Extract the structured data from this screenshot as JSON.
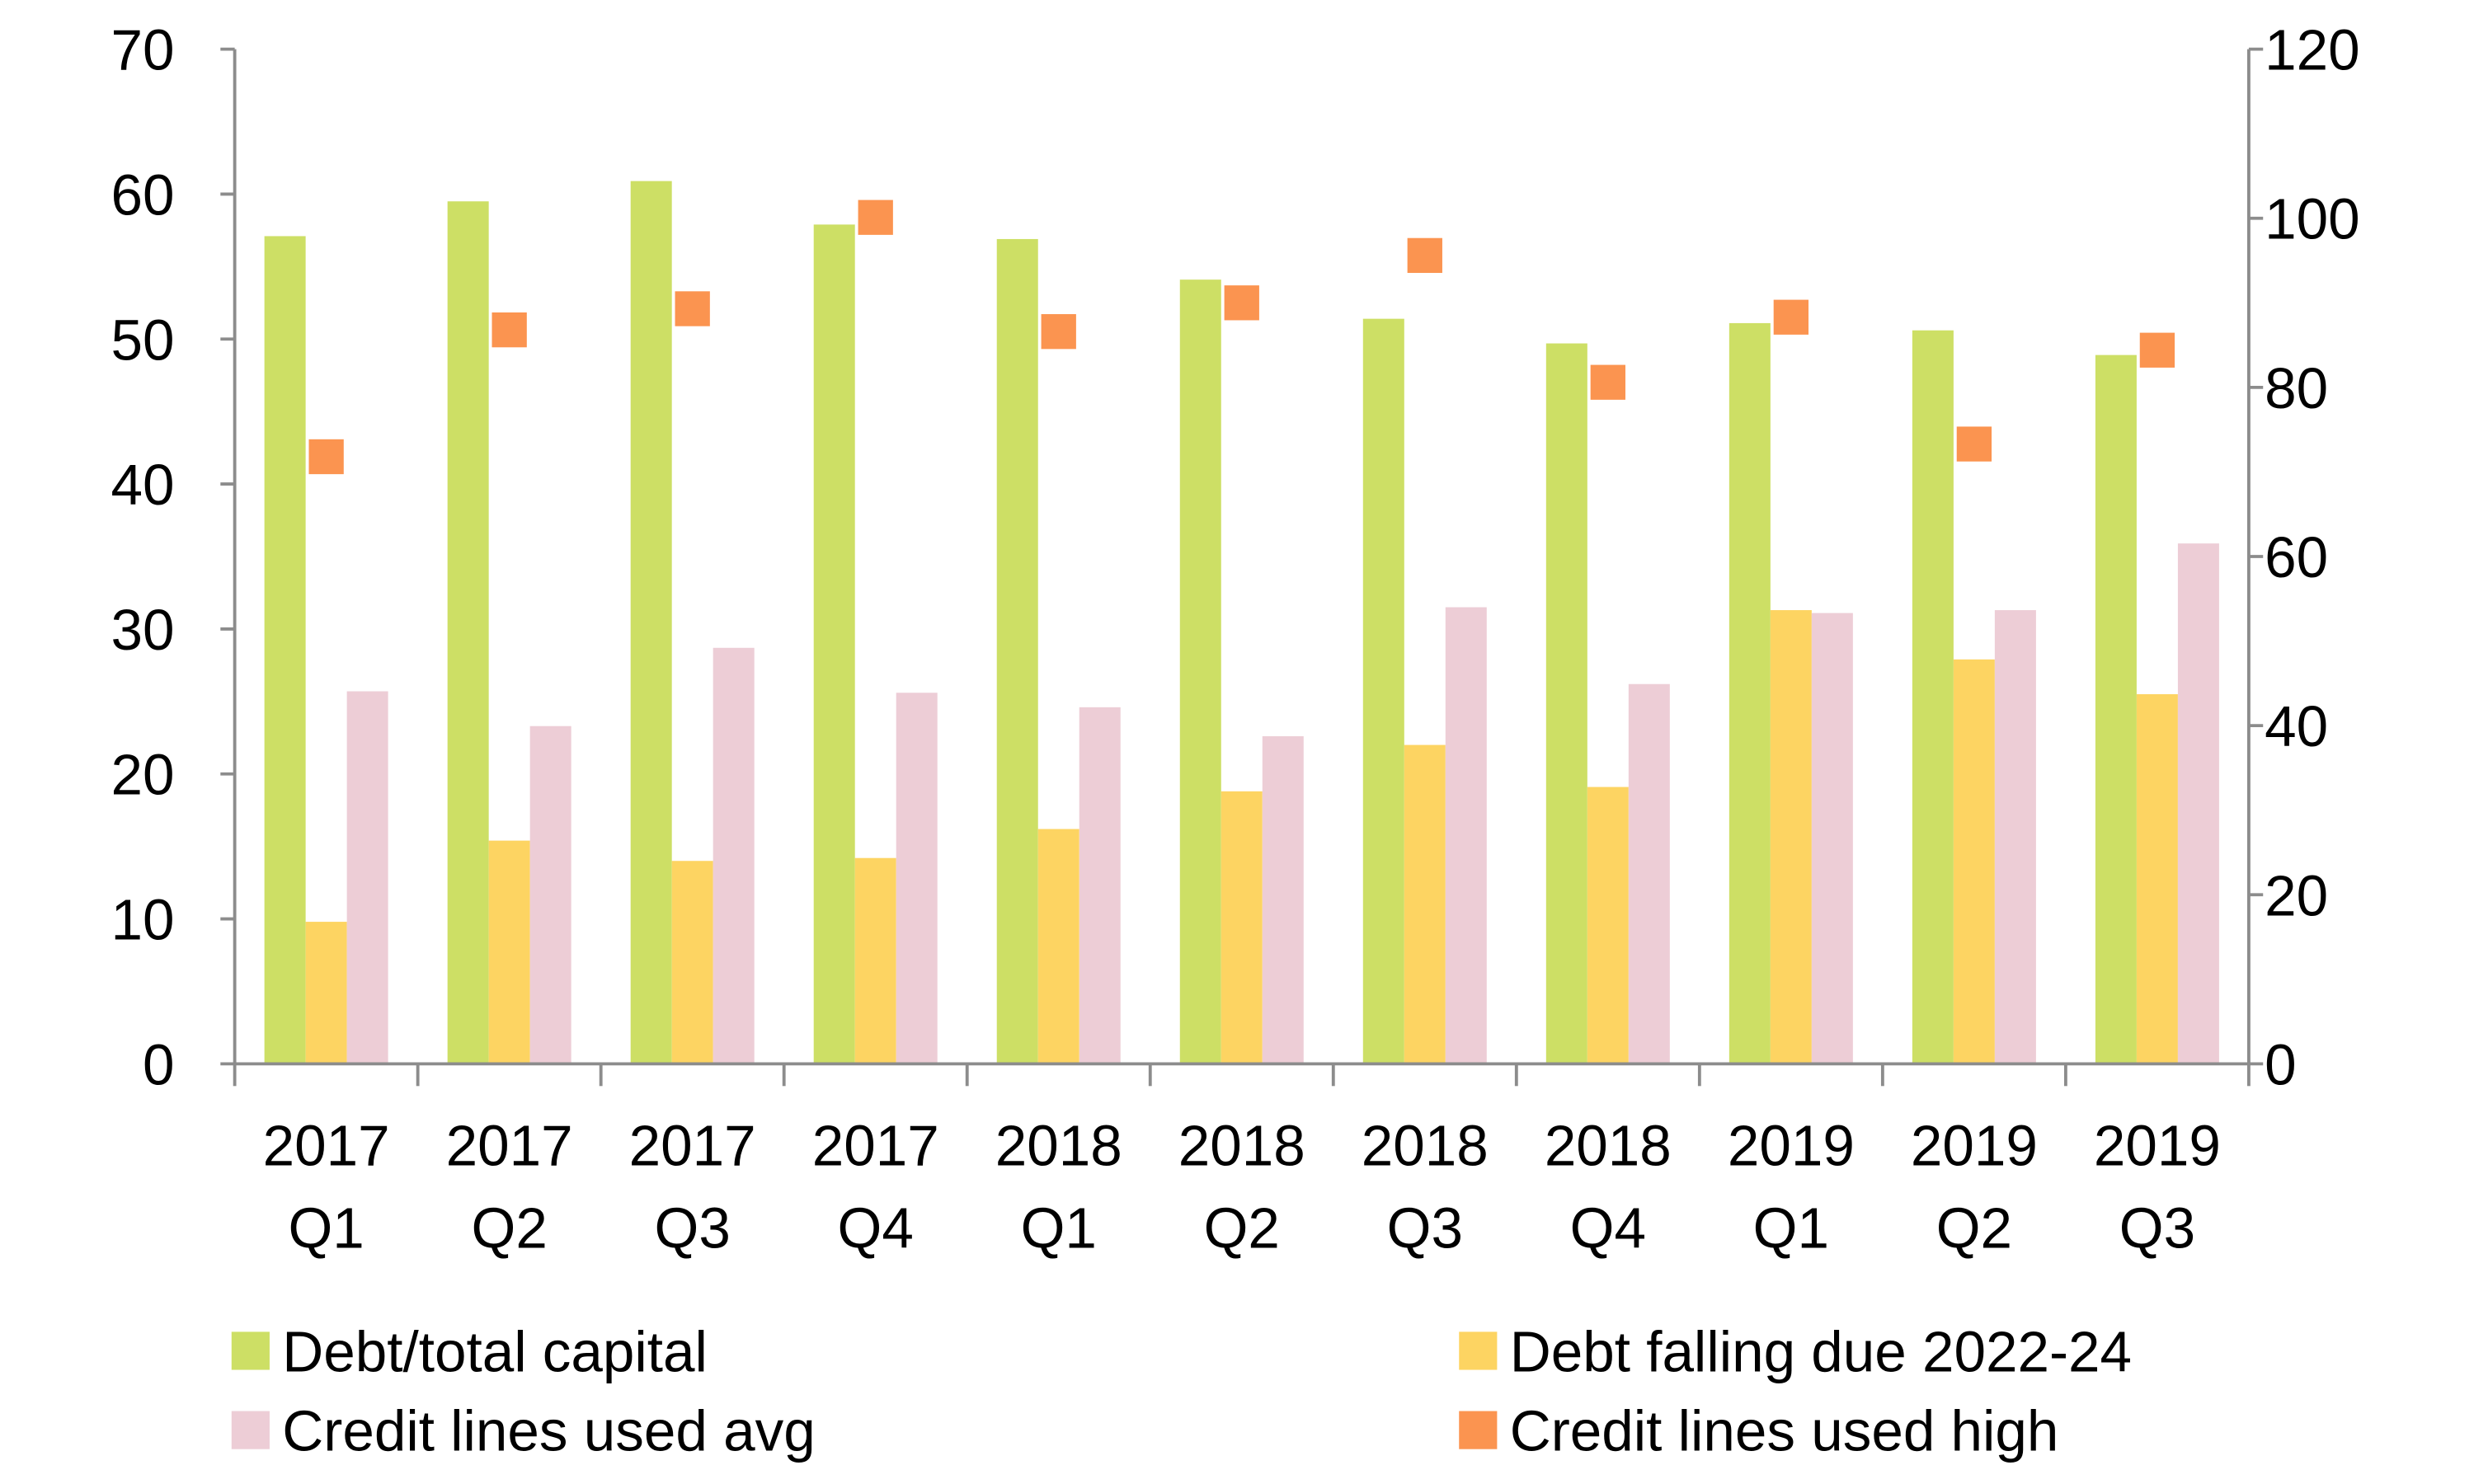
{
  "chart_data": {
    "type": "bar",
    "title": "",
    "xlabel": "",
    "ylabel": "",
    "y2label": "",
    "categories": [
      [
        "2017",
        "Q1"
      ],
      [
        "2017",
        "Q2"
      ],
      [
        "2017",
        "Q3"
      ],
      [
        "2017",
        "Q4"
      ],
      [
        "2018",
        "Q1"
      ],
      [
        "2018",
        "Q2"
      ],
      [
        "2018",
        "Q3"
      ],
      [
        "2018",
        "Q4"
      ],
      [
        "2019",
        "Q1"
      ],
      [
        "2019",
        "Q2"
      ],
      [
        "2019",
        "Q3"
      ]
    ],
    "ylim": [
      0,
      70
    ],
    "yticks": [
      0,
      10,
      20,
      30,
      40,
      50,
      60,
      70
    ],
    "y2lim": [
      0,
      120
    ],
    "y2ticks": [
      0,
      20,
      40,
      60,
      80,
      100,
      120
    ],
    "grid": false,
    "legend_placement": "bottom",
    "series": [
      {
        "name": "Debt/total capital",
        "kind": "bar",
        "axis": "left",
        "color": "#cddf65",
        "values": [
          57.1,
          59.5,
          60.9,
          57.9,
          56.9,
          54.1,
          51.4,
          49.7,
          51.1,
          50.6,
          48.9
        ]
      },
      {
        "name": "Debt falling due 2022-24",
        "kind": "bar",
        "axis": "left",
        "color": "#fdd462",
        "values": [
          9.8,
          15.4,
          14.0,
          14.2,
          16.2,
          18.8,
          22.0,
          19.1,
          31.3,
          27.9,
          25.5
        ]
      },
      {
        "name": "Credit lines used avg",
        "kind": "bar",
        "axis": "left",
        "color": "#edcdd6",
        "values": [
          25.7,
          23.3,
          28.7,
          25.6,
          24.6,
          22.6,
          31.5,
          26.2,
          31.1,
          31.3,
          35.9
        ]
      },
      {
        "name": "Credit lines used high",
        "kind": "marker",
        "axis": "right",
        "color": "#fb9450",
        "values": [
          71.8,
          86.8,
          89.3,
          100.1,
          86.6,
          90.0,
          95.6,
          80.6,
          88.3,
          73.3,
          84.4
        ]
      }
    ]
  }
}
